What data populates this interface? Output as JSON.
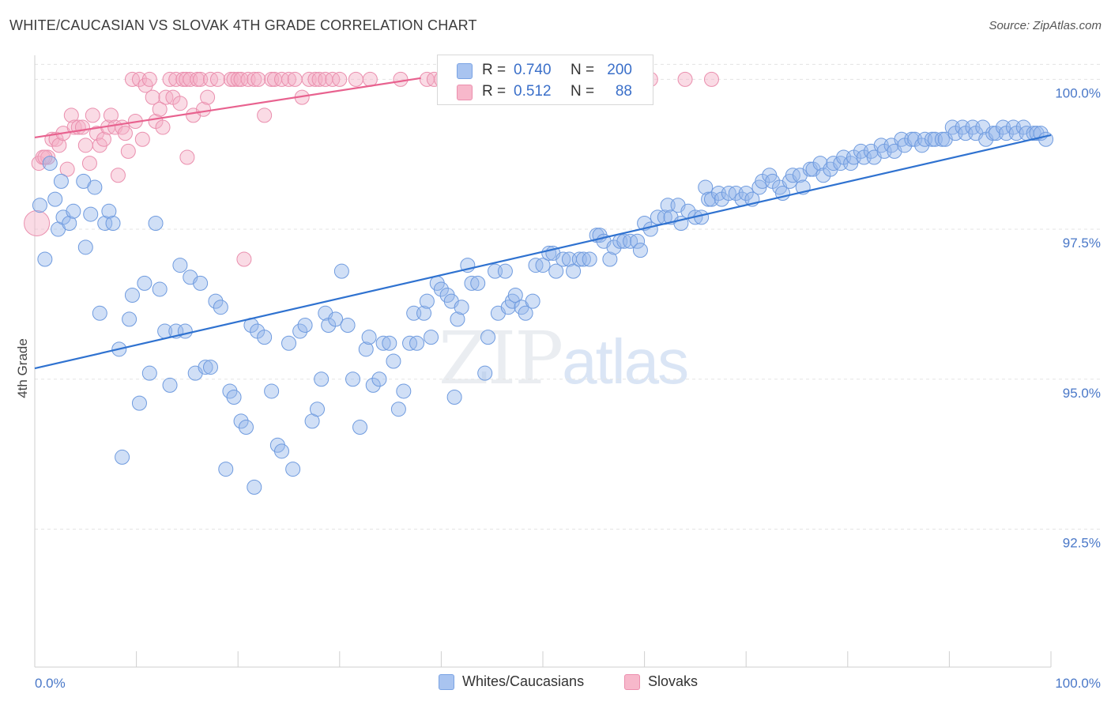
{
  "header": {
    "title": "WHITE/CAUCASIAN VS SLOVAK 4TH GRADE CORRELATION CHART",
    "source": "Source: ZipAtlas.com"
  },
  "watermark": {
    "zip": "ZIP",
    "atlas": "atlas"
  },
  "legend": {
    "rows": [
      {
        "r_label": "R =",
        "r_value": "0.740",
        "n_label": "N =",
        "n_value": "200",
        "color": "#a9c4f0",
        "border": "#7aa3e4"
      },
      {
        "r_label": "R =",
        "r_value": "0.512",
        "n_label": "N =",
        "n_value": "88",
        "color": "#f7b8cb",
        "border": "#ec8fae"
      }
    ]
  },
  "bottom_legend": {
    "items": [
      {
        "label": "Whites/Caucasians",
        "color": "#a9c4f0",
        "border": "#7aa3e4"
      },
      {
        "label": "Slovaks",
        "color": "#f7b8cb",
        "border": "#ec8fae"
      }
    ]
  },
  "colors": {
    "blue_fill": "rgba(150,185,235,0.45)",
    "blue_stroke": "#6f9bdf",
    "blue_line": "#2f72d0",
    "pink_fill": "rgba(245,175,198,0.45)",
    "pink_stroke": "#ea8fae",
    "pink_line": "#e8628f",
    "grid": "#e3e3e3",
    "tick_text": "#4a78c8"
  },
  "chart_data": {
    "type": "scatter",
    "title": "WHITE/CAUCASIAN VS SLOVAK 4TH GRADE CORRELATION CHART",
    "xlabel": "",
    "ylabel": "4th Grade",
    "xlim": [
      0,
      100
    ],
    "ylim": [
      90.2,
      100.4
    ],
    "x_tick_labels": [
      {
        "value": 0,
        "label": "0.0%"
      },
      {
        "value": 100,
        "label": "100.0%"
      }
    ],
    "y_tick_labels": [
      {
        "value": 100.0,
        "label": "100.0%"
      },
      {
        "value": 97.5,
        "label": "97.5%"
      },
      {
        "value": 95.0,
        "label": "95.0%"
      },
      {
        "value": 92.5,
        "label": "92.5%"
      }
    ],
    "grid": true,
    "legend_position": "top-center",
    "series": [
      {
        "name": "Whites/Caucasians",
        "trendline": [
          [
            0,
            95.18
          ],
          [
            100,
            99.07
          ]
        ],
        "points": [
          [
            0.5,
            97.9
          ],
          [
            1.0,
            97.0
          ],
          [
            1.5,
            98.6
          ],
          [
            2.0,
            98.0
          ],
          [
            2.3,
            97.5
          ],
          [
            2.6,
            98.3
          ],
          [
            2.8,
            97.7
          ],
          [
            3.4,
            97.6
          ],
          [
            3.8,
            97.8
          ],
          [
            4.8,
            98.3
          ],
          [
            5.0,
            97.2
          ],
          [
            5.5,
            97.75
          ],
          [
            5.9,
            98.2
          ],
          [
            6.4,
            96.1
          ],
          [
            6.9,
            97.6
          ],
          [
            7.3,
            97.8
          ],
          [
            7.7,
            97.6
          ],
          [
            8.3,
            95.5
          ],
          [
            8.6,
            93.7
          ],
          [
            9.3,
            96.0
          ],
          [
            9.6,
            96.4
          ],
          [
            10.3,
            94.6
          ],
          [
            10.8,
            96.6
          ],
          [
            11.3,
            95.1
          ],
          [
            11.9,
            97.6
          ],
          [
            12.3,
            96.5
          ],
          [
            12.8,
            95.8
          ],
          [
            13.3,
            94.9
          ],
          [
            13.9,
            95.8
          ],
          [
            14.3,
            96.9
          ],
          [
            14.8,
            95.8
          ],
          [
            15.3,
            96.7
          ],
          [
            15.8,
            95.1
          ],
          [
            16.3,
            96.6
          ],
          [
            16.8,
            95.2
          ],
          [
            17.3,
            95.2
          ],
          [
            17.8,
            96.3
          ],
          [
            18.3,
            96.2
          ],
          [
            18.8,
            93.5
          ],
          [
            19.2,
            94.8
          ],
          [
            19.6,
            94.7
          ],
          [
            20.3,
            94.3
          ],
          [
            20.8,
            94.2
          ],
          [
            21.3,
            95.9
          ],
          [
            21.6,
            93.2
          ],
          [
            21.9,
            95.8
          ],
          [
            22.6,
            95.7
          ],
          [
            23.3,
            94.8
          ],
          [
            23.9,
            93.9
          ],
          [
            24.3,
            93.8
          ],
          [
            25.0,
            95.6
          ],
          [
            25.4,
            93.5
          ],
          [
            26.1,
            95.8
          ],
          [
            26.6,
            95.9
          ],
          [
            27.3,
            94.3
          ],
          [
            27.8,
            94.5
          ],
          [
            28.2,
            95.0
          ],
          [
            28.6,
            96.1
          ],
          [
            28.9,
            95.9
          ],
          [
            29.6,
            96.0
          ],
          [
            30.2,
            96.8
          ],
          [
            30.8,
            95.9
          ],
          [
            31.3,
            95.0
          ],
          [
            32.0,
            94.2
          ],
          [
            32.6,
            95.5
          ],
          [
            32.9,
            95.7
          ],
          [
            33.3,
            94.9
          ],
          [
            33.9,
            95.0
          ],
          [
            34.3,
            95.6
          ],
          [
            34.9,
            95.6
          ],
          [
            35.3,
            95.3
          ],
          [
            35.8,
            94.5
          ],
          [
            36.3,
            94.8
          ],
          [
            36.9,
            95.6
          ],
          [
            37.3,
            96.1
          ],
          [
            37.6,
            95.6
          ],
          [
            38.3,
            96.1
          ],
          [
            38.6,
            96.3
          ],
          [
            39.0,
            95.7
          ],
          [
            39.6,
            96.6
          ],
          [
            40.0,
            96.5
          ],
          [
            40.6,
            96.4
          ],
          [
            41.0,
            96.3
          ],
          [
            41.3,
            94.7
          ],
          [
            41.6,
            96.0
          ],
          [
            42.0,
            96.2
          ],
          [
            42.6,
            96.9
          ],
          [
            43.0,
            96.6
          ],
          [
            43.6,
            96.6
          ],
          [
            44.3,
            95.1
          ],
          [
            44.6,
            95.7
          ],
          [
            45.3,
            96.8
          ],
          [
            45.6,
            96.1
          ],
          [
            46.3,
            96.8
          ],
          [
            46.6,
            96.2
          ],
          [
            47.0,
            96.3
          ],
          [
            47.3,
            96.4
          ],
          [
            47.9,
            96.2
          ],
          [
            48.3,
            96.1
          ],
          [
            49.0,
            96.3
          ],
          [
            49.3,
            96.9
          ],
          [
            50.0,
            96.9
          ],
          [
            50.6,
            97.1
          ],
          [
            51.0,
            97.1
          ],
          [
            51.3,
            96.8
          ],
          [
            52.0,
            97.0
          ],
          [
            52.6,
            97.0
          ],
          [
            53.0,
            96.8
          ],
          [
            53.6,
            97.0
          ],
          [
            54.0,
            97.0
          ],
          [
            54.6,
            97.0
          ],
          [
            55.3,
            97.4
          ],
          [
            55.6,
            97.4
          ],
          [
            56.0,
            97.3
          ],
          [
            56.6,
            97.0
          ],
          [
            57.0,
            97.2
          ],
          [
            57.6,
            97.3
          ],
          [
            58.0,
            97.3
          ],
          [
            58.6,
            97.3
          ],
          [
            59.3,
            97.3
          ],
          [
            59.6,
            97.15
          ],
          [
            60.0,
            97.6
          ],
          [
            60.6,
            97.5
          ],
          [
            61.3,
            97.7
          ],
          [
            62.0,
            97.7
          ],
          [
            62.3,
            97.9
          ],
          [
            62.6,
            97.7
          ],
          [
            63.3,
            97.9
          ],
          [
            63.6,
            97.6
          ],
          [
            64.3,
            97.8
          ],
          [
            65.0,
            97.7
          ],
          [
            65.6,
            97.7
          ],
          [
            66.0,
            98.2
          ],
          [
            66.3,
            98.0
          ],
          [
            66.6,
            98.0
          ],
          [
            67.3,
            98.1
          ],
          [
            67.6,
            98.0
          ],
          [
            68.3,
            98.1
          ],
          [
            69.0,
            98.1
          ],
          [
            69.6,
            98.0
          ],
          [
            70.0,
            98.1
          ],
          [
            70.6,
            98.0
          ],
          [
            71.3,
            98.2
          ],
          [
            71.6,
            98.3
          ],
          [
            72.3,
            98.4
          ],
          [
            72.6,
            98.3
          ],
          [
            73.3,
            98.2
          ],
          [
            73.6,
            98.1
          ],
          [
            74.3,
            98.3
          ],
          [
            74.6,
            98.4
          ],
          [
            75.3,
            98.4
          ],
          [
            75.6,
            98.2
          ],
          [
            76.3,
            98.5
          ],
          [
            76.6,
            98.5
          ],
          [
            77.3,
            98.6
          ],
          [
            77.6,
            98.4
          ],
          [
            78.3,
            98.5
          ],
          [
            78.6,
            98.6
          ],
          [
            79.3,
            98.6
          ],
          [
            79.6,
            98.7
          ],
          [
            80.3,
            98.6
          ],
          [
            80.6,
            98.7
          ],
          [
            81.3,
            98.8
          ],
          [
            81.6,
            98.7
          ],
          [
            82.3,
            98.8
          ],
          [
            82.6,
            98.7
          ],
          [
            83.3,
            98.9
          ],
          [
            83.6,
            98.8
          ],
          [
            84.3,
            98.9
          ],
          [
            84.6,
            98.8
          ],
          [
            85.3,
            99.0
          ],
          [
            85.6,
            98.9
          ],
          [
            86.3,
            99.0
          ],
          [
            86.6,
            99.0
          ],
          [
            87.3,
            98.9
          ],
          [
            87.6,
            99.0
          ],
          [
            88.3,
            99.0
          ],
          [
            88.6,
            99.0
          ],
          [
            89.3,
            99.0
          ],
          [
            89.6,
            99.0
          ],
          [
            90.3,
            99.2
          ],
          [
            90.6,
            99.1
          ],
          [
            91.3,
            99.2
          ],
          [
            91.6,
            99.1
          ],
          [
            92.3,
            99.2
          ],
          [
            92.6,
            99.1
          ],
          [
            93.3,
            99.2
          ],
          [
            93.6,
            99.0
          ],
          [
            94.3,
            99.1
          ],
          [
            94.6,
            99.1
          ],
          [
            95.3,
            99.2
          ],
          [
            95.6,
            99.1
          ],
          [
            96.3,
            99.2
          ],
          [
            96.6,
            99.1
          ],
          [
            97.3,
            99.2
          ],
          [
            97.6,
            99.1
          ],
          [
            98.3,
            99.1
          ],
          [
            98.6,
            99.1
          ],
          [
            99.0,
            99.1
          ],
          [
            99.5,
            99.0
          ]
        ]
      },
      {
        "name": "Slovaks",
        "trendline": [
          [
            0,
            99.03
          ],
          [
            38,
            100.02
          ]
        ],
        "points": [
          [
            0.4,
            98.6
          ],
          [
            0.8,
            98.7
          ],
          [
            1.3,
            98.7
          ],
          [
            1.7,
            99.0
          ],
          [
            2.1,
            99.0
          ],
          [
            2.4,
            98.9
          ],
          [
            2.8,
            99.1
          ],
          [
            3.2,
            98.5
          ],
          [
            3.6,
            99.4
          ],
          [
            3.9,
            99.2
          ],
          [
            4.3,
            99.2
          ],
          [
            4.7,
            99.2
          ],
          [
            5.0,
            98.9
          ],
          [
            5.4,
            98.6
          ],
          [
            5.7,
            99.4
          ],
          [
            6.1,
            99.1
          ],
          [
            6.4,
            98.9
          ],
          [
            6.8,
            99.0
          ],
          [
            7.2,
            99.2
          ],
          [
            7.5,
            99.4
          ],
          [
            7.9,
            99.2
          ],
          [
            8.2,
            98.4
          ],
          [
            8.6,
            99.2
          ],
          [
            8.9,
            99.1
          ],
          [
            9.2,
            98.8
          ],
          [
            9.6,
            100.0
          ],
          [
            9.9,
            99.3
          ],
          [
            10.3,
            100.0
          ],
          [
            10.6,
            99.0
          ],
          [
            10.9,
            99.9
          ],
          [
            11.3,
            100.0
          ],
          [
            11.6,
            99.7
          ],
          [
            11.9,
            99.3
          ],
          [
            12.3,
            99.5
          ],
          [
            12.6,
            99.2
          ],
          [
            12.9,
            99.7
          ],
          [
            13.3,
            100.0
          ],
          [
            13.6,
            99.7
          ],
          [
            13.9,
            100.0
          ],
          [
            14.3,
            99.6
          ],
          [
            14.6,
            100.0
          ],
          [
            14.9,
            100.0
          ],
          [
            15.3,
            100.0
          ],
          [
            15.6,
            99.4
          ],
          [
            16.0,
            100.0
          ],
          [
            16.3,
            100.0
          ],
          [
            16.6,
            99.5
          ],
          [
            17.0,
            99.7
          ],
          [
            17.3,
            100.0
          ],
          [
            18.0,
            100.0
          ],
          [
            19.3,
            100.0
          ],
          [
            19.6,
            100.0
          ],
          [
            20.0,
            100.0
          ],
          [
            20.3,
            100.0
          ],
          [
            20.6,
            97.0
          ],
          [
            21.0,
            100.0
          ],
          [
            21.6,
            100.0
          ],
          [
            22.0,
            100.0
          ],
          [
            22.6,
            99.4
          ],
          [
            23.3,
            100.0
          ],
          [
            23.6,
            100.0
          ],
          [
            24.3,
            100.0
          ],
          [
            25.0,
            100.0
          ],
          [
            25.6,
            100.0
          ],
          [
            26.3,
            99.7
          ],
          [
            27.0,
            100.0
          ],
          [
            27.6,
            100.0
          ],
          [
            28.0,
            100.0
          ],
          [
            28.6,
            100.0
          ],
          [
            29.3,
            100.0
          ],
          [
            30.0,
            100.0
          ],
          [
            31.6,
            100.0
          ],
          [
            33.0,
            100.0
          ],
          [
            36.0,
            100.0
          ],
          [
            38.6,
            100.0
          ],
          [
            39.3,
            100.0
          ],
          [
            40.0,
            100.0
          ],
          [
            43.0,
            100.0
          ],
          [
            45.3,
            100.0
          ],
          [
            48.6,
            100.0
          ],
          [
            53.0,
            100.0
          ],
          [
            56.3,
            100.0
          ],
          [
            60.6,
            100.0
          ],
          [
            64.0,
            100.0
          ],
          [
            66.6,
            100.0
          ],
          [
            0.2,
            97.6
          ],
          [
            1.0,
            98.7
          ],
          [
            15.0,
            98.7
          ]
        ]
      }
    ]
  }
}
